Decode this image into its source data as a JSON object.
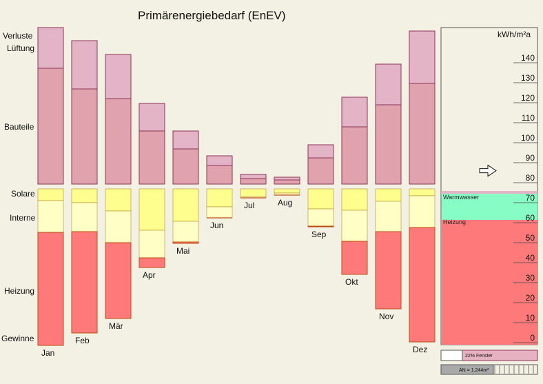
{
  "chart_data": {
    "type": "bar",
    "title": "Primärenergiebedarf (EnEV)",
    "categories": [
      "Jan",
      "Feb",
      "Mär",
      "Apr",
      "Mai",
      "Jun",
      "Jul",
      "Aug",
      "Sep",
      "Okt",
      "Nov",
      "Dez"
    ],
    "losses_labels": {
      "top": "Verluste",
      "second": "Lüftung",
      "third": "Bauteile"
    },
    "gains_labels": {
      "solar": "Solare",
      "internal": "Interne",
      "heating": "Heizung",
      "gains": "Gewinne"
    },
    "losses": {
      "unit_note": "stacked losses per month (relative units)",
      "series": [
        {
          "name": "Lüftung",
          "values": [
            59,
            70,
            64,
            40,
            26,
            14,
            6,
            4,
            19,
            43,
            59,
            76
          ]
        },
        {
          "name": "Bauteile",
          "values": [
            168,
            138,
            124,
            77,
            51,
            27,
            8,
            6,
            38,
            83,
            115,
            146
          ]
        }
      ]
    },
    "gains": {
      "series": [
        {
          "name": "Solare",
          "values": [
            17,
            20,
            32,
            60,
            47,
            26,
            11,
            6,
            29,
            31,
            18,
            10
          ]
        },
        {
          "name": "Interne",
          "values": [
            46,
            42,
            46,
            40,
            30,
            16,
            2,
            3,
            25,
            45,
            44,
            46
          ]
        },
        {
          "name": "Heizung",
          "values": [
            164,
            147,
            110,
            14,
            2,
            0,
            0,
            0,
            1,
            48,
            112,
            166
          ]
        }
      ]
    },
    "scale": {
      "unit": "kWh/m²a",
      "ticks": [
        140,
        130,
        120,
        110,
        100,
        90,
        80,
        70,
        60,
        50,
        40,
        30,
        20,
        10,
        0
      ],
      "ylim": [
        0,
        145
      ]
    },
    "summary": {
      "segments": [
        {
          "name": "Warmwasser",
          "from": 63,
          "to": 76
        },
        {
          "name": "Heizung",
          "from": 0,
          "to": 63
        }
      ],
      "arrow_value": 86
    },
    "footer": {
      "window_ratio_label": "22% Fenster",
      "window_ratio": 0.22,
      "area_label": "AN = 1.244m²"
    },
    "colors": {
      "background": "#f2f1e4",
      "loss_upper": "#e2b4c5",
      "loss_lower": "#e0a3ae",
      "loss_border": "#8f3456",
      "solar": "#fefe8e",
      "internal": "#fffec4",
      "gain_border": "#b48a2a",
      "heating": "#fe7a7a",
      "heating_border": "#b94d10",
      "warmwasser": "#87fdc5",
      "panel_pink": "#e6b2c2"
    }
  }
}
